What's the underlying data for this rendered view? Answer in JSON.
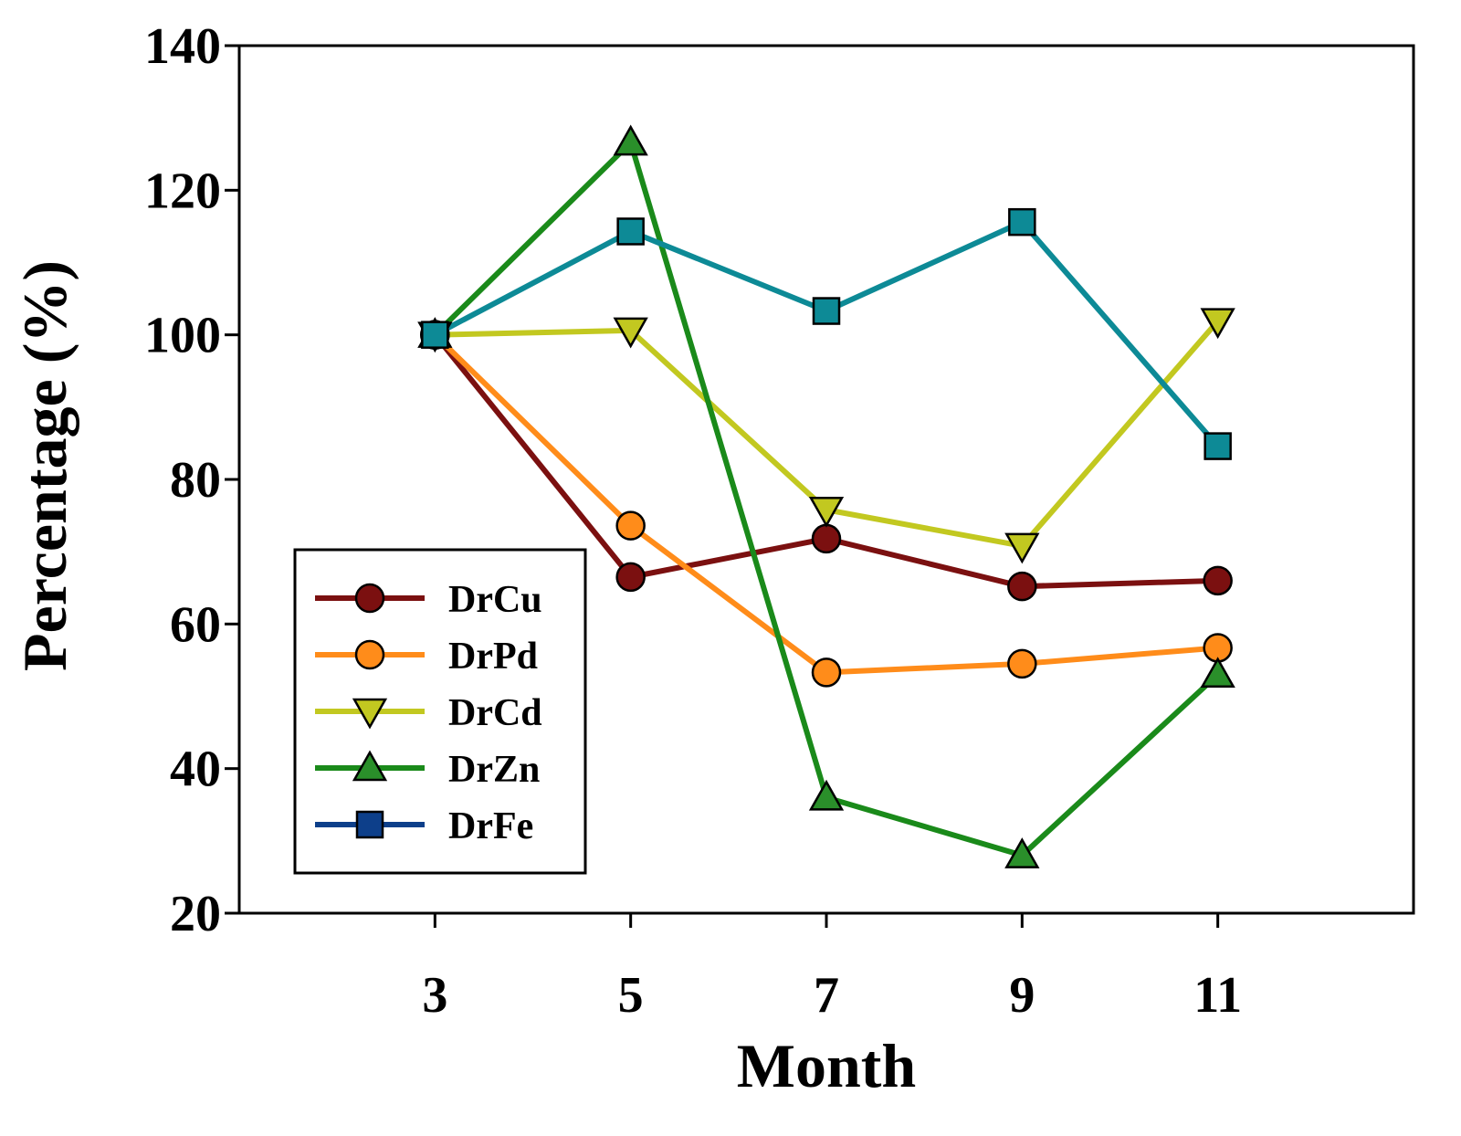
{
  "chart_data": {
    "type": "line",
    "title": "",
    "xlabel": "Month",
    "ylabel": "Percentage (%)",
    "x": [
      3,
      5,
      7,
      9,
      11
    ],
    "xlim": [
      1,
      13
    ],
    "ylim": [
      20,
      140
    ],
    "yticks": [
      20,
      40,
      60,
      80,
      100,
      120,
      140
    ],
    "xtick_labels": [
      "3",
      "5",
      "7",
      "9",
      "11"
    ],
    "ytick_labels": [
      "20",
      "40",
      "60",
      "80",
      "100",
      "120",
      "140"
    ],
    "grid": false,
    "legend_position": "bottom-left",
    "series": [
      {
        "name": "DrCu",
        "marker": "circle",
        "line_color": "#7b1010",
        "marker_color": "#7b1010",
        "values": [
          100,
          66.5,
          71.8,
          65.2,
          66.0
        ]
      },
      {
        "name": "DrPd",
        "marker": "circle",
        "line_color": "#ff8c1a",
        "marker_color": "#ff8c1a",
        "values": [
          100,
          73.6,
          53.3,
          54.5,
          56.7
        ]
      },
      {
        "name": "DrCd",
        "marker": "triangle-down",
        "line_color": "#c2c820",
        "marker_color": "#c2c820",
        "values": [
          100,
          100.6,
          75.8,
          70.8,
          101.9
        ]
      },
      {
        "name": "DrZn",
        "marker": "triangle-up",
        "line_color": "#1a8a1a",
        "marker_color": "#2a8f2a",
        "values": [
          100,
          126.6,
          36.0,
          28.0,
          53.0
        ]
      },
      {
        "name": "DrFe",
        "marker": "square",
        "line_color": "#0d8a96",
        "marker_color": "#0d8a96",
        "legend_line_color": "#0d3f8a",
        "legend_marker_color": "#0d3f8a",
        "values": [
          100,
          114.3,
          103.3,
          115.6,
          84.6
        ]
      }
    ]
  }
}
